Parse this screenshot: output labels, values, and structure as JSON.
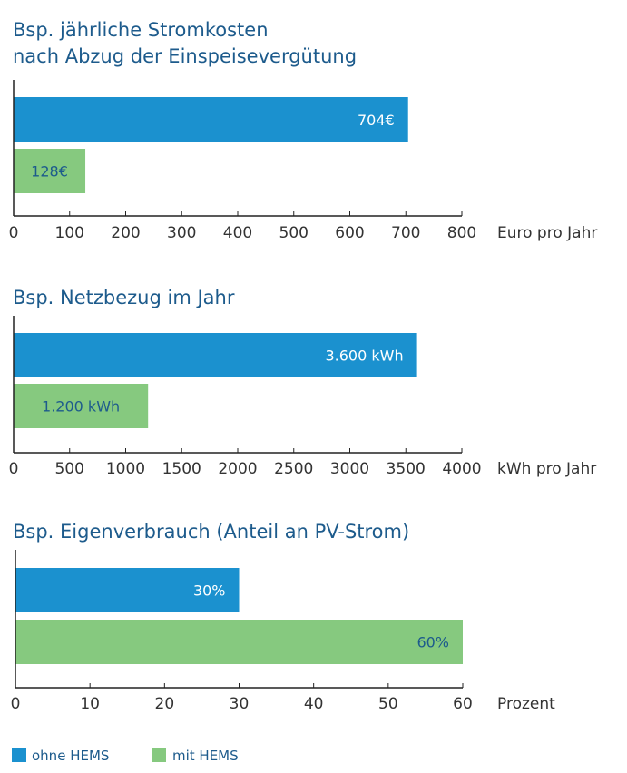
{
  "colors": {
    "ohne": "#1b91cf",
    "mit": "#86c97f",
    "axis": "#222222",
    "title": "#1d5b8c",
    "label_on_green": "#1d5b8c",
    "label_on_blue": "#ffffff"
  },
  "legend": [
    {
      "label": "ohne HEMS",
      "series": "ohne"
    },
    {
      "label": "mit HEMS",
      "series": "mit"
    }
  ],
  "chart_data": [
    {
      "type": "bar",
      "orientation": "horizontal",
      "title": [
        "Bsp. jährliche Stromkosten",
        "nach Abzug der Einspeisevergütung"
      ],
      "xlabel": "Euro pro Jahr",
      "xlim": [
        0,
        800
      ],
      "ticks": [
        "0",
        "100",
        "200",
        "300",
        "400",
        "500",
        "600",
        "700",
        "800"
      ],
      "tick_values": [
        0,
        100,
        200,
        300,
        400,
        500,
        600,
        700,
        800
      ],
      "series": [
        {
          "name": "ohne HEMS",
          "key": "ohne",
          "value": 704,
          "label": "704€"
        },
        {
          "name": "mit HEMS",
          "key": "mit",
          "value": 128,
          "label": "128€"
        }
      ]
    },
    {
      "type": "bar",
      "orientation": "horizontal",
      "title": [
        "Bsp. Netzbezug im Jahr"
      ],
      "xlabel": "kWh pro Jahr",
      "xlim": [
        0,
        4000
      ],
      "ticks": [
        "0",
        "500",
        "1000",
        "1500",
        "2000",
        "2500",
        "3000",
        "3500",
        "4000"
      ],
      "tick_values": [
        0,
        500,
        1000,
        1500,
        2000,
        2500,
        3000,
        3500,
        4000
      ],
      "series": [
        {
          "name": "ohne HEMS",
          "key": "ohne",
          "value": 3600,
          "label": "3.600 kWh"
        },
        {
          "name": "mit HEMS",
          "key": "mit",
          "value": 1200,
          "label": "1.200 kWh"
        }
      ]
    },
    {
      "type": "bar",
      "orientation": "horizontal",
      "title": [
        "Bsp. Eigenverbrauch (Anteil an PV-Strom)"
      ],
      "xlabel": "Prozent",
      "xlim": [
        0,
        60
      ],
      "ticks": [
        "0",
        "10",
        "20",
        "30",
        "40",
        "50",
        "60"
      ],
      "tick_values": [
        0,
        10,
        20,
        30,
        40,
        50,
        60
      ],
      "series": [
        {
          "name": "ohne HEMS",
          "key": "ohne",
          "value": 30,
          "label": "30%"
        },
        {
          "name": "mit HEMS",
          "key": "mit",
          "value": 60,
          "label": "60%"
        }
      ]
    }
  ]
}
